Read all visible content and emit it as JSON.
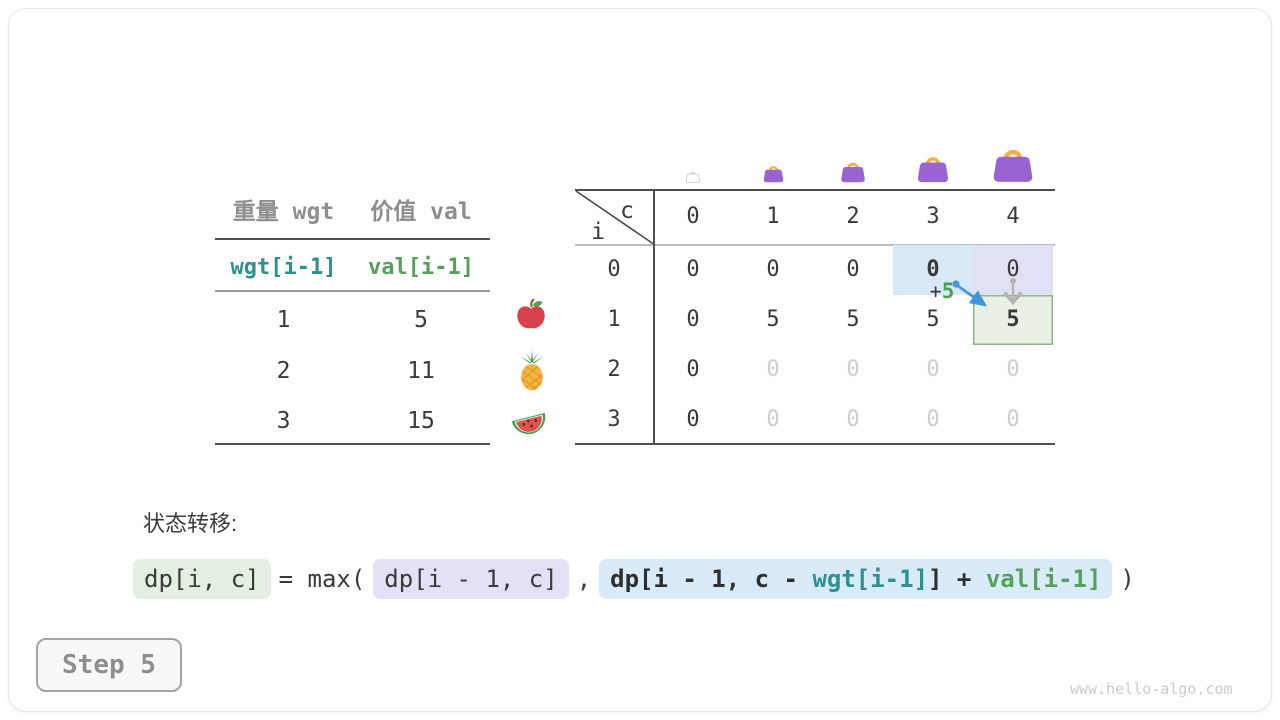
{
  "colors": {
    "teal_accent": "#2e9090",
    "green_accent": "#55a05c",
    "cell_blue": "#d7e9f7",
    "cell_lavender": "#e1e1f6",
    "cell_green": "#e8f1e4",
    "cell_green_border": "#8bb985",
    "arrow_blue": "#3f97de",
    "arrow_gray": "#b3b3b3",
    "bag_purple": "#9a63d2",
    "bag_handle_orange": "#f2b04a"
  },
  "items_table": {
    "col1_header": "重量 wgt",
    "col2_header": "价值 val",
    "index_cells": {
      "wgt": "wgt[i-1]",
      "val": "val[i-1]"
    },
    "rows": [
      {
        "wgt": "1",
        "val": "5",
        "icon": "apple-icon"
      },
      {
        "wgt": "2",
        "val": "11",
        "icon": "pineapple-icon"
      },
      {
        "wgt": "3",
        "val": "15",
        "icon": "watermelon-icon"
      }
    ]
  },
  "dp_table": {
    "corner_top": "c",
    "corner_bottom": "i",
    "col_headers": [
      "0",
      "1",
      "2",
      "3",
      "4"
    ],
    "bag_icons": [
      "bag-empty-icon",
      "bag-icon",
      "bag-icon",
      "bag-icon",
      "bag-icon"
    ],
    "rows": [
      {
        "header": "0",
        "cells": [
          {
            "v": "0"
          },
          {
            "v": "0"
          },
          {
            "v": "0"
          },
          {
            "v": "0",
            "bold": true,
            "hl": "blue"
          },
          {
            "v": "0",
            "hl": "lavender"
          }
        ]
      },
      {
        "header": "1",
        "cells": [
          {
            "v": "0"
          },
          {
            "v": "5"
          },
          {
            "v": "5"
          },
          {
            "v": "5"
          },
          {
            "v": "5",
            "bold": true,
            "hl": "green"
          }
        ]
      },
      {
        "header": "2",
        "cells": [
          {
            "v": "0"
          },
          {
            "v": "0",
            "dim": true
          },
          {
            "v": "0",
            "dim": true
          },
          {
            "v": "0",
            "dim": true
          },
          {
            "v": "0",
            "dim": true
          }
        ]
      },
      {
        "header": "3",
        "cells": [
          {
            "v": "0"
          },
          {
            "v": "0",
            "dim": true
          },
          {
            "v": "0",
            "dim": true
          },
          {
            "v": "0",
            "dim": true
          },
          {
            "v": "0",
            "dim": true
          }
        ]
      }
    ],
    "annotation_plus": "+",
    "annotation_value": "5"
  },
  "formula": {
    "label": "状态转移:",
    "lhs": "dp[i, c]",
    "operator": "= max(",
    "arg1": "dp[i - 1, c]",
    "separator": ",",
    "arg2_parts": [
      {
        "text": "dp[i - 1, c - ",
        "color": "dark"
      },
      {
        "text": "wgt[i-1]",
        "color": "teal"
      },
      {
        "text": "] + ",
        "color": "dark"
      },
      {
        "text": "val[i-1]",
        "color": "green"
      }
    ],
    "close": ")"
  },
  "footer": {
    "step_label": "Step 5",
    "watermark": "www.hello-algo.com"
  }
}
